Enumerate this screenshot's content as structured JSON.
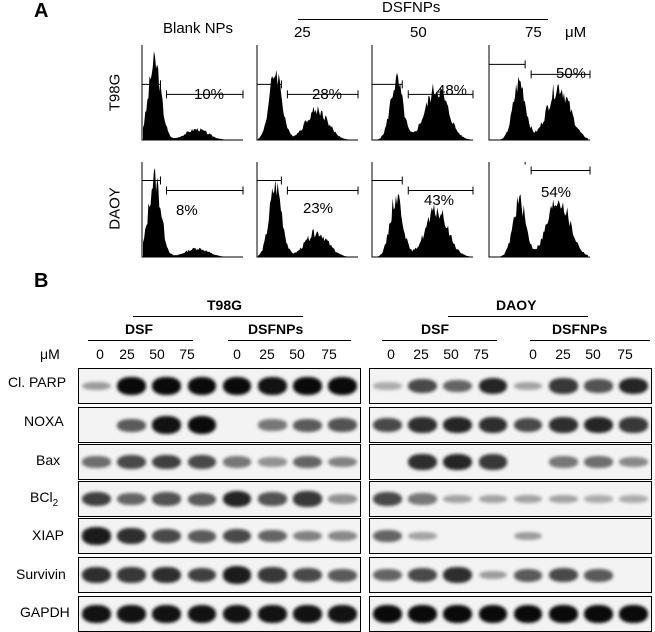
{
  "panelA": {
    "label": "A",
    "header": {
      "blank": "Blank NPs",
      "group": "DSFNPs",
      "doses": [
        "25",
        "50",
        "75"
      ],
      "unit": "μM"
    },
    "rows": [
      {
        "name": "T98G",
        "percents": [
          "10%",
          "28%",
          "48%",
          "50%"
        ],
        "values": [
          10,
          28,
          48,
          50
        ]
      },
      {
        "name": "DAOY",
        "percents": [
          "8%",
          "23%",
          "43%",
          "54%"
        ],
        "values": [
          8,
          23,
          43,
          54
        ]
      }
    ]
  },
  "panelB": {
    "label": "B",
    "cell_lines": [
      "T98G",
      "DAOY"
    ],
    "treatments": [
      "DSF",
      "DSFNPs",
      "DSF",
      "DSFNPs"
    ],
    "unit": "μM",
    "lanes": [
      "0",
      "25",
      "50",
      "75",
      "0",
      "25",
      "50",
      "75",
      "0",
      "25",
      "50",
      "75",
      "0",
      "25",
      "50",
      "75"
    ],
    "proteins": [
      "Cl. PARP",
      "NOXA",
      "Bax",
      "BCl",
      "XIAP",
      "Survivin",
      "GAPDH"
    ],
    "bcl_subscript": "2",
    "intensity": {
      "T98G": [
        [
          0.15,
          0.95,
          0.95,
          0.95,
          0.95,
          0.9,
          0.95,
          0.95
        ],
        [
          0.0,
          0.5,
          0.9,
          0.95,
          0.0,
          0.35,
          0.5,
          0.55
        ],
        [
          0.4,
          0.6,
          0.65,
          0.6,
          0.35,
          0.2,
          0.45,
          0.3
        ],
        [
          0.65,
          0.45,
          0.55,
          0.5,
          0.8,
          0.55,
          0.7,
          0.2
        ],
        [
          0.85,
          0.75,
          0.6,
          0.5,
          0.6,
          0.45,
          0.3,
          0.25
        ],
        [
          0.75,
          0.7,
          0.75,
          0.65,
          0.85,
          0.7,
          0.6,
          0.5
        ],
        [
          0.9,
          0.9,
          0.9,
          0.9,
          0.9,
          0.9,
          0.9,
          0.9
        ]
      ],
      "DAOY": [
        [
          0.05,
          0.6,
          0.45,
          0.8,
          0.1,
          0.7,
          0.55,
          0.8
        ],
        [
          0.6,
          0.75,
          0.8,
          0.75,
          0.6,
          0.75,
          0.8,
          0.7
        ],
        [
          0.0,
          0.75,
          0.8,
          0.7,
          0.0,
          0.35,
          0.4,
          0.25
        ],
        [
          0.6,
          0.35,
          0.1,
          0.1,
          0.1,
          0.1,
          0.05,
          0.05
        ],
        [
          0.45,
          0.1,
          0.0,
          0.0,
          0.15,
          0.0,
          0.0,
          0.0
        ],
        [
          0.45,
          0.6,
          0.75,
          0.15,
          0.5,
          0.6,
          0.5,
          0.0
        ],
        [
          0.95,
          0.95,
          0.95,
          0.95,
          0.95,
          0.95,
          0.95,
          0.95
        ]
      ]
    }
  }
}
